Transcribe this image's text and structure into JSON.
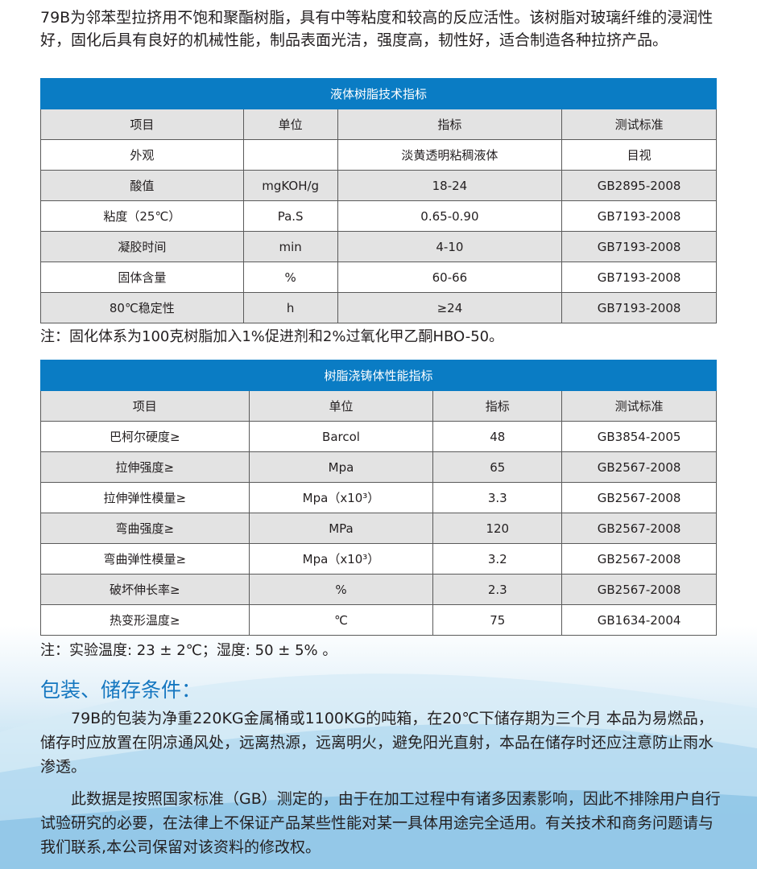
{
  "intro": "79B为邻苯型拉挤用不饱和聚酯树脂，具有中等粘度和较高的反应活性。该树脂对玻璃纤维的浸润性好，固化后具有良好的机械性能，制品表面光洁，强度高，韧性好，适合制造各种拉挤产品。",
  "colors": {
    "header_blue": "#0a7cc4",
    "title_blue": "#1577c0",
    "row_gray": "#e3e3e3"
  },
  "table1": {
    "title": "液体树脂技术指标",
    "headers": [
      "项目",
      "单位",
      "指标",
      "测试标准"
    ],
    "rows": [
      [
        "外观",
        "",
        "淡黄透明粘稠液体",
        "目视"
      ],
      [
        "酸值",
        "mgKOH/g",
        "18-24",
        "GB2895-2008"
      ],
      [
        "粘度（25℃）",
        "Pa.S",
        "0.65-0.90",
        "GB7193-2008"
      ],
      [
        "凝胶时间",
        "min",
        "4-10",
        "GB7193-2008"
      ],
      [
        "固体含量",
        "%",
        "60-66",
        "GB7193-2008"
      ],
      [
        "80℃稳定性",
        "h",
        "≥24",
        "GB7193-2008"
      ]
    ],
    "note": "注：固化体系为100克树脂加入1%促进剂和2%过氧化甲乙酮HBO-50。"
  },
  "table2": {
    "title": "树脂浇铸体性能指标",
    "headers": [
      "项目",
      "单位",
      "指标",
      "测试标准"
    ],
    "rows": [
      [
        "巴柯尔硬度≥",
        "Barcol",
        "48",
        "GB3854-2005"
      ],
      [
        "拉伸强度≥",
        "Mpa",
        "65",
        "GB2567-2008"
      ],
      [
        "拉伸弹性模量≥",
        "Mpa（x10³）",
        "3.3",
        "GB2567-2008"
      ],
      [
        "弯曲强度≥",
        "MPa",
        "120",
        "GB2567-2008"
      ],
      [
        "弯曲弹性模量≥",
        "Mpa（x10³）",
        "3.2",
        "GB2567-2008"
      ],
      [
        "破坏伸长率≥",
        "%",
        "2.3",
        "GB2567-2008"
      ],
      [
        "热变形温度≥",
        "℃",
        "75",
        "GB1634-2004"
      ]
    ],
    "note": "注：实验温度: 23 ± 2℃；湿度: 50 ± 5% 。"
  },
  "packaging": {
    "title": "包装、储存条件：",
    "para1": "79B的包装为净重220KG金属桶或1100KG的吨箱，在20℃下储存期为三个月 本品为易燃品，储存时应放置在阴凉通风处，远离热源，远离明火，避免阳光直射，本品在储存时还应注意防止雨水渗透。",
    "para2": "此数据是按照国家标准（GB）测定的，由于在加工过程中有诸多因素影响，因此不排除用户自行试验研究的必要，在法律上不保证产品某些性能对某一具体用途完全适用。有关技术和商务问题请与我们联系,本公司保留对该资料的修改权。"
  }
}
